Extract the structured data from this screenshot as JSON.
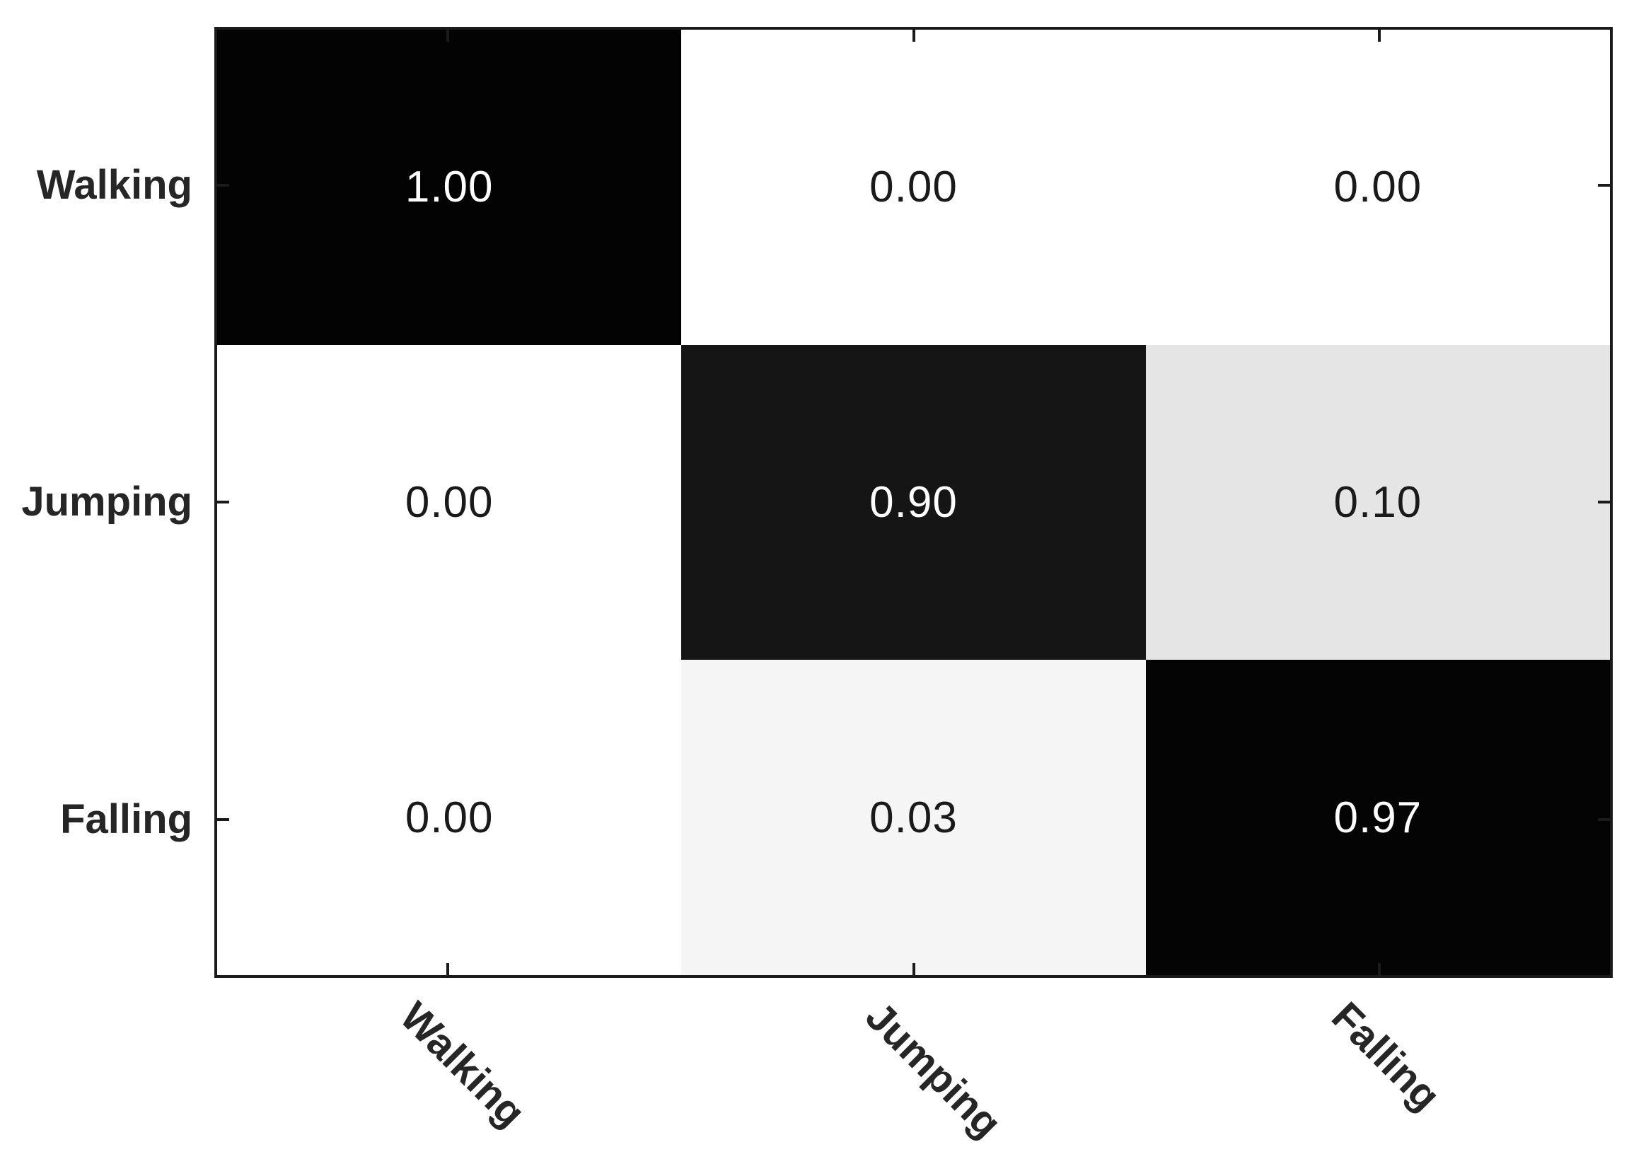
{
  "chart_data": {
    "type": "heatmap",
    "subtype": "confusion-matrix",
    "title": "",
    "xlabel": "",
    "ylabel": "",
    "row_labels": [
      "Walking",
      "Jumping",
      "Falling"
    ],
    "col_labels": [
      "Walking",
      "Jumping",
      "Falling"
    ],
    "matrix": [
      [
        1.0,
        0.0,
        0.0
      ],
      [
        0.0,
        0.9,
        0.1
      ],
      [
        0.0,
        0.03,
        0.97
      ]
    ],
    "cell_text": [
      [
        "1.00",
        "0.00",
        "0.00"
      ],
      [
        "0.00",
        "0.90",
        "0.10"
      ],
      [
        "0.00",
        "0.03",
        "0.97"
      ]
    ],
    "cell_colors": [
      [
        "#030303",
        "#ffffff",
        "#ffffff"
      ],
      [
        "#ffffff",
        "#151515",
        "#e5e5e5"
      ],
      [
        "#ffffff",
        "#f5f5f5",
        "#040404"
      ]
    ],
    "text_colors": [
      [
        "#ffffff",
        "#1a1a1a",
        "#1a1a1a"
      ],
      [
        "#1a1a1a",
        "#ffffff",
        "#1a1a1a"
      ],
      [
        "#1a1a1a",
        "#1a1a1a",
        "#ffffff"
      ]
    ],
    "colormap": "grayscale, 1.0 = black, 0.0 = white",
    "value_range": [
      0,
      1
    ],
    "grid": false,
    "legend": false,
    "axis_color": "#1a1a1a",
    "label_color": "#262626",
    "x_tick_label_rotation_deg": 45
  }
}
